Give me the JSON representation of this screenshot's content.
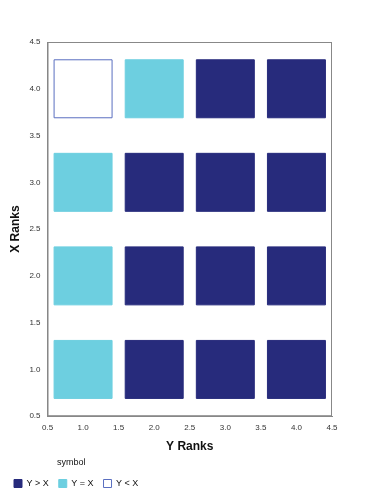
{
  "chart_data": {
    "type": "scatter",
    "x_label": "Y Ranks",
    "y_label": "X Ranks",
    "legend_title": "symbol",
    "legend": "bottom",
    "grid": false,
    "xlim": [
      0.5,
      4.5
    ],
    "xticks": [
      0.5,
      {
        "value": 1,
        "label": "1.0"
      },
      1.5,
      {
        "value": 2,
        "label": "2.0"
      },
      2.5,
      {
        "value": 3,
        "label": "3.0"
      },
      3.5,
      {
        "value": 4,
        "label": "4.0"
      },
      4.5
    ],
    "ylim": [
      0.5,
      4.5
    ],
    "yticks": [
      0.5,
      {
        "value": 1,
        "label": "1.0"
      },
      1.5,
      {
        "value": 2,
        "label": "2.0"
      },
      2.5,
      {
        "value": 3,
        "label": "3.0"
      },
      3.5,
      {
        "value": 4,
        "label": "4.0"
      },
      4.5
    ],
    "series": [
      {
        "name": "Y > X",
        "color": "#272b7c",
        "marker": "square",
        "x": [
          2,
          3,
          4,
          2,
          3,
          4,
          2,
          3,
          4,
          3,
          4
        ],
        "y": [
          1,
          1,
          1,
          2,
          2,
          2,
          3,
          3,
          3,
          4,
          4
        ]
      },
      {
        "name": "Y = X",
        "color": "#6dcfe0",
        "marker": "square",
        "x": [
          1,
          1,
          1,
          2
        ],
        "y": [
          1,
          2,
          3,
          4
        ]
      },
      {
        "name": "Y < X",
        "color": "#5a6fc0",
        "marker": "square-open",
        "x": [
          1
        ],
        "y": [
          4
        ]
      }
    ]
  }
}
